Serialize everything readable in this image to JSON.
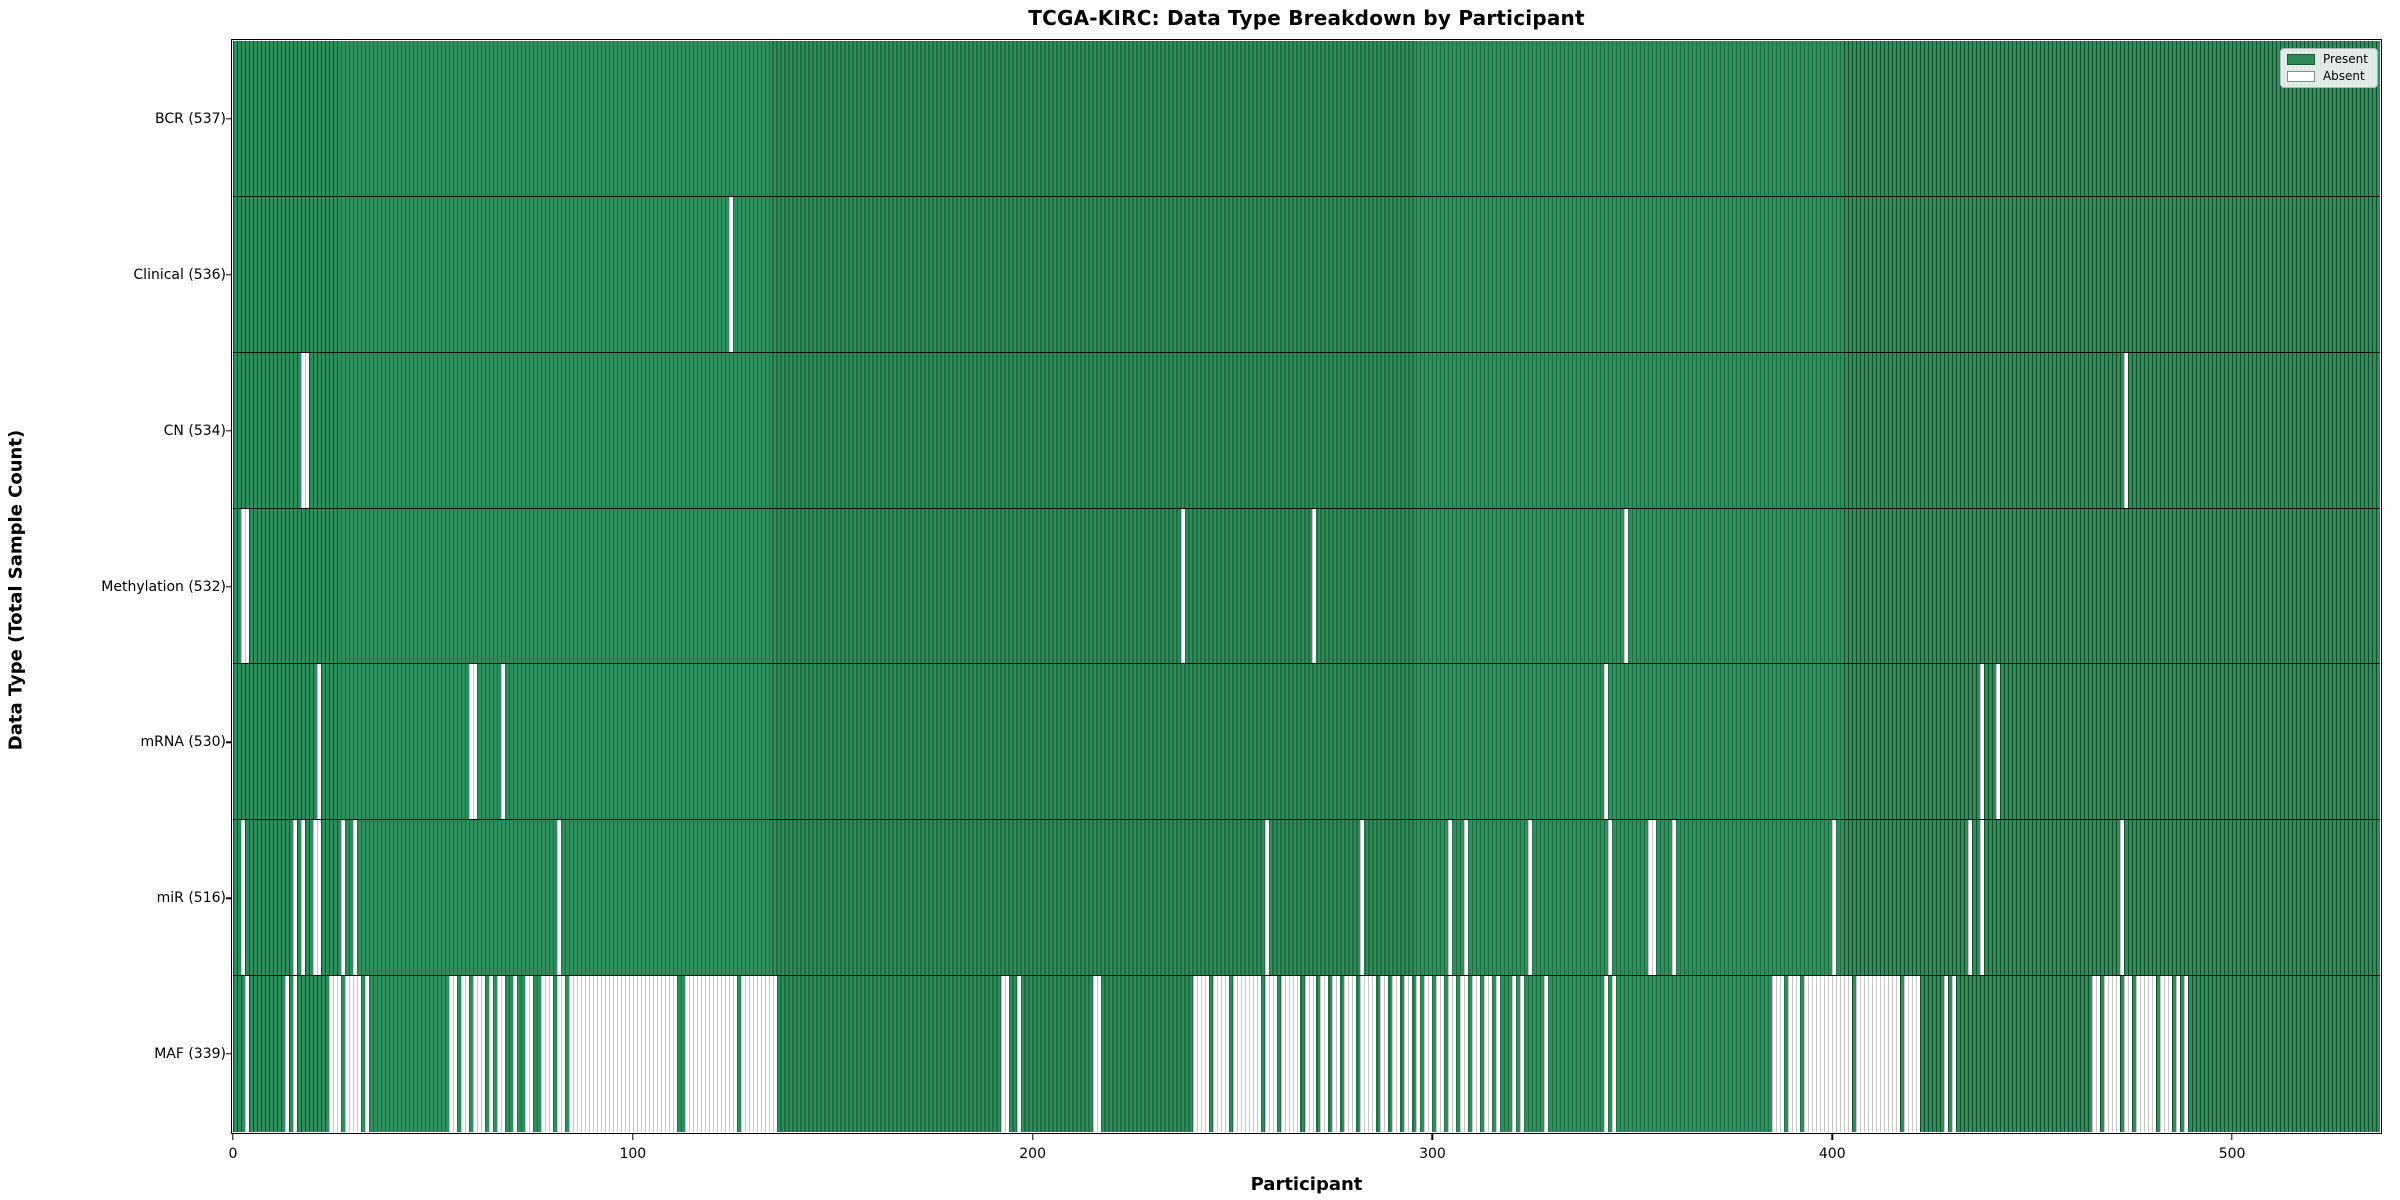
{
  "chart_data": {
    "type": "heatmap",
    "title": "TCGA-KIRC: Data Type Breakdown by Participant",
    "xlabel": "Participant",
    "ylabel": "Data Type (Total Sample Count)",
    "n_participants": 537,
    "x_ticks": [
      0,
      100,
      200,
      300,
      400,
      500
    ],
    "legend": [
      {
        "label": "Present",
        "color": "#2e8b57"
      },
      {
        "label": "Absent",
        "color": "#ffffff"
      }
    ],
    "colors": {
      "present": "#2e8f5c",
      "absent": "#ffffff",
      "present_edge": "rgba(8,30,18,0.60)",
      "absent_edge": "rgba(0,0,0,0.22)",
      "row_separator": "rgba(0,0,0,0.85)"
    },
    "rows": [
      {
        "name": "BCR",
        "label": "BCR (537)",
        "total": 537,
        "absent_runs": []
      },
      {
        "name": "Clinical",
        "label": "Clinical (536)",
        "total": 536,
        "absent_runs": [
          [
            124,
            124
          ]
        ]
      },
      {
        "name": "CN",
        "label": "CN (534)",
        "total": 534,
        "absent_runs": [
          [
            17,
            18
          ],
          [
            473,
            473
          ]
        ]
      },
      {
        "name": "Methylation",
        "label": "Methylation (532)",
        "total": 532,
        "absent_runs": [
          [
            2,
            3
          ],
          [
            237,
            237
          ],
          [
            270,
            270
          ],
          [
            348,
            348
          ]
        ]
      },
      {
        "name": "mRNA",
        "label": "mRNA (530)",
        "total": 530,
        "absent_runs": [
          [
            21,
            21
          ],
          [
            59,
            60
          ],
          [
            67,
            67
          ],
          [
            343,
            343
          ],
          [
            437,
            437
          ],
          [
            441,
            441
          ]
        ]
      },
      {
        "name": "miR",
        "label": "miR (516)",
        "total": 516,
        "absent_runs": [
          [
            2,
            2
          ],
          [
            15,
            15
          ],
          [
            17,
            17
          ],
          [
            20,
            21
          ],
          [
            27,
            27
          ],
          [
            30,
            30
          ],
          [
            81,
            81
          ],
          [
            258,
            258
          ],
          [
            282,
            282
          ],
          [
            304,
            304
          ],
          [
            308,
            308
          ],
          [
            324,
            324
          ],
          [
            344,
            344
          ],
          [
            354,
            355
          ],
          [
            360,
            360
          ],
          [
            400,
            400
          ],
          [
            434,
            434
          ],
          [
            437,
            437
          ],
          [
            472,
            472
          ]
        ]
      },
      {
        "name": "MAF",
        "label": "MAF (339)",
        "total": 339,
        "absent_runs": [
          [
            3,
            3
          ],
          [
            13,
            13
          ],
          [
            15,
            15
          ],
          [
            24,
            26
          ],
          [
            28,
            31
          ],
          [
            33,
            33
          ],
          [
            54,
            55
          ],
          [
            57,
            58
          ],
          [
            60,
            62
          ],
          [
            64,
            64
          ],
          [
            66,
            67
          ],
          [
            70,
            70
          ],
          [
            73,
            74
          ],
          [
            77,
            79
          ],
          [
            81,
            82
          ],
          [
            84,
            84
          ],
          [
            85,
            110
          ],
          [
            113,
            125
          ],
          [
            127,
            135
          ],
          [
            192,
            193
          ],
          [
            196,
            196
          ],
          [
            215,
            216
          ],
          [
            240,
            243
          ],
          [
            245,
            248
          ],
          [
            250,
            256
          ],
          [
            258,
            260
          ],
          [
            262,
            266
          ],
          [
            268,
            270
          ],
          [
            272,
            273
          ],
          [
            275,
            276
          ],
          [
            278,
            280
          ],
          [
            282,
            285
          ],
          [
            287,
            288
          ],
          [
            290,
            291
          ],
          [
            293,
            294
          ],
          [
            296,
            296
          ],
          [
            298,
            299
          ],
          [
            301,
            302
          ],
          [
            304,
            305
          ],
          [
            307,
            308
          ],
          [
            310,
            311
          ],
          [
            313,
            314
          ],
          [
            316,
            316
          ],
          [
            320,
            320
          ],
          [
            322,
            322
          ],
          [
            328,
            328
          ],
          [
            343,
            343
          ],
          [
            345,
            345
          ],
          [
            385,
            387
          ],
          [
            389,
            391
          ],
          [
            393,
            404
          ],
          [
            406,
            416
          ],
          [
            418,
            421
          ],
          [
            428,
            428
          ],
          [
            430,
            430
          ],
          [
            465,
            466
          ],
          [
            468,
            471
          ],
          [
            473,
            474
          ],
          [
            476,
            480
          ],
          [
            482,
            484
          ],
          [
            486,
            486
          ],
          [
            488,
            488
          ]
        ]
      }
    ]
  }
}
